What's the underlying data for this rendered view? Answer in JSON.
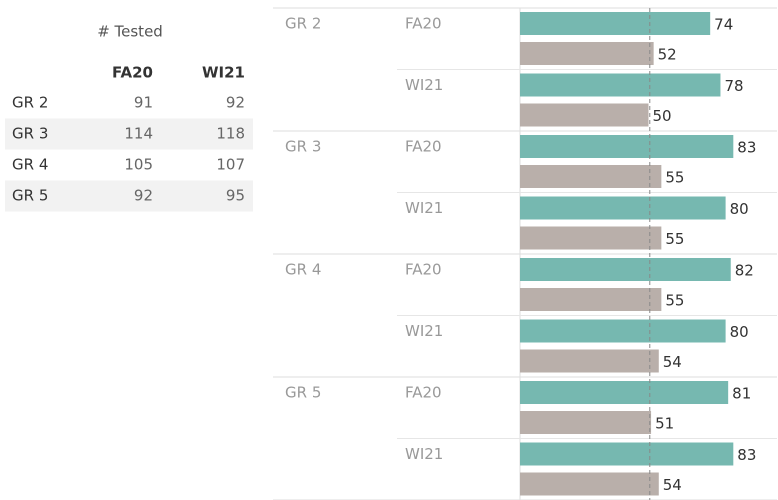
{
  "table": {
    "title": "# Tested",
    "columns": [
      "FA20",
      "WI21"
    ],
    "rows": [
      {
        "label": "GR 2",
        "values": [
          91,
          92
        ]
      },
      {
        "label": "GR 3",
        "values": [
          114,
          118
        ]
      },
      {
        "label": "GR 4",
        "values": [
          105,
          107
        ]
      },
      {
        "label": "GR 5",
        "values": [
          92,
          95
        ]
      }
    ]
  },
  "chart_data": {
    "type": "bar",
    "orientation": "horizontal",
    "groups": [
      "GR 2",
      "GR 3",
      "GR 4",
      "GR 5"
    ],
    "categories": [
      "FA20",
      "WI21",
      "FA20",
      "WI21",
      "FA20",
      "WI21",
      "FA20",
      "WI21"
    ],
    "series": [
      {
        "color": "#76b8b0",
        "values": [
          74,
          78,
          83,
          80,
          82,
          80,
          81,
          83
        ]
      },
      {
        "color": "#b9afaa",
        "values": [
          52,
          50,
          55,
          55,
          55,
          54,
          51,
          54
        ]
      }
    ],
    "xlim": [
      0,
      100
    ],
    "reference_line": 50.5
  }
}
